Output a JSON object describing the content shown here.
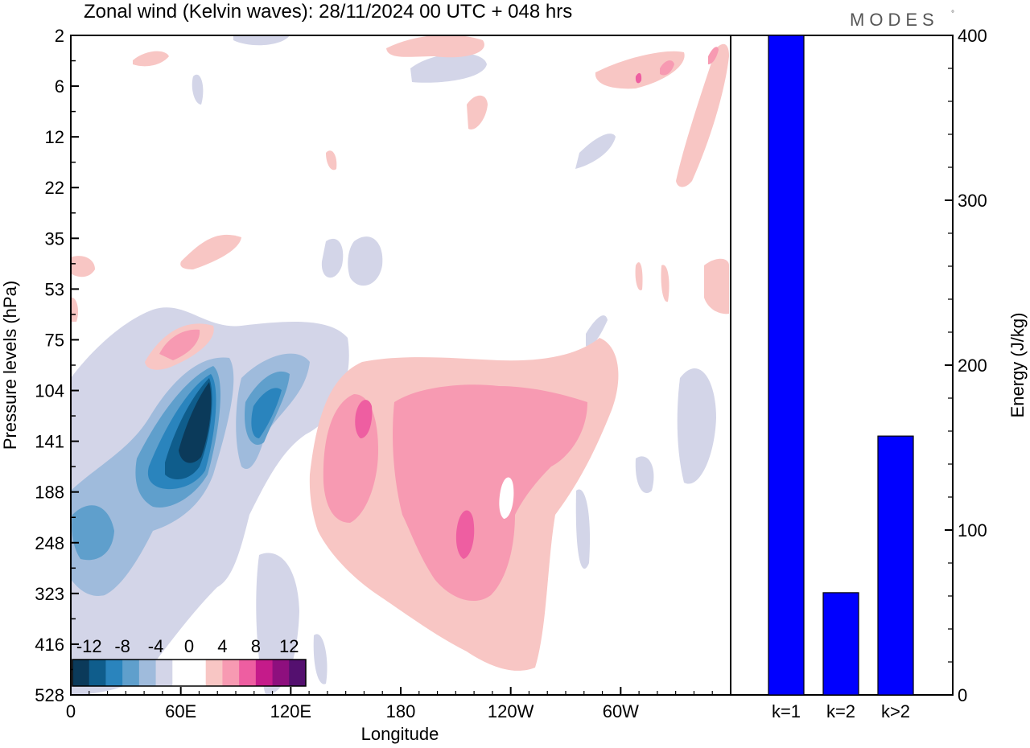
{
  "title": "Zonal wind (Kelvin waves):  28/11/2024  00 UTC  + 048 hrs",
  "brand": "MODES",
  "brand_mark": "°",
  "chart_data": [
    {
      "type": "heatmap",
      "xlabel": "Longitude",
      "ylabel": "Pressure levels (hPa)",
      "x_ticks": [
        "0",
        "60E",
        "120E",
        "180",
        "120W",
        "60W"
      ],
      "x_tick_degrees": [
        0,
        60,
        120,
        180,
        240,
        300
      ],
      "xlim": [
        0,
        360
      ],
      "y_ticks": [
        "2",
        "6",
        "12",
        "22",
        "35",
        "53",
        "75",
        "104",
        "141",
        "188",
        "248",
        "323",
        "416",
        "528"
      ],
      "colorbar": {
        "labels": [
          "-12",
          "-8",
          "-4",
          "0",
          "4",
          "8",
          "12"
        ],
        "colors": [
          "#0b3a5a",
          "#0f5d8c",
          "#2a84bd",
          "#5f9fcc",
          "#9fbbdc",
          "#d3d5e8",
          "#ffffff",
          "#ffffff",
          "#f8c6c4",
          "#f79ab2",
          "#ee5ea1",
          "#c51b8a",
          "#8e0f7e",
          "#54106f"
        ]
      },
      "features": [
        {
          "label": "strong negative core",
          "sign": "negative",
          "lon_range": [
            52,
            78
          ],
          "level_range": [
            "104",
            "188"
          ]
        },
        {
          "label": "secondary negative core",
          "sign": "negative",
          "lon_range": [
            93,
            118
          ],
          "level_range": [
            "104",
            "188"
          ]
        },
        {
          "label": "lower negative band",
          "sign": "negative",
          "lon_range": [
            0,
            40
          ],
          "level_range": [
            "188",
            "323"
          ]
        },
        {
          "label": "positive region",
          "sign": "positive",
          "lon_range": [
            140,
            285
          ],
          "level_range": [
            "104",
            "416"
          ]
        },
        {
          "label": "positive maximum",
          "sign": "positive",
          "lon_range": [
            155,
            165
          ],
          "level_range": [
            "104",
            "141"
          ]
        },
        {
          "label": "positive maximum",
          "sign": "positive",
          "lon_range": [
            210,
            220
          ],
          "level_range": [
            "188",
            "248"
          ]
        }
      ]
    },
    {
      "type": "bar",
      "ylabel": "Energy (J/kg)",
      "categories": [
        "k=1",
        "k=2",
        "k>2"
      ],
      "values": [
        400,
        62,
        157
      ],
      "ylim": [
        0,
        400
      ],
      "y_ticks": [
        "0",
        "100",
        "200",
        "300",
        "400"
      ],
      "bar_color": "#0000ff"
    }
  ]
}
